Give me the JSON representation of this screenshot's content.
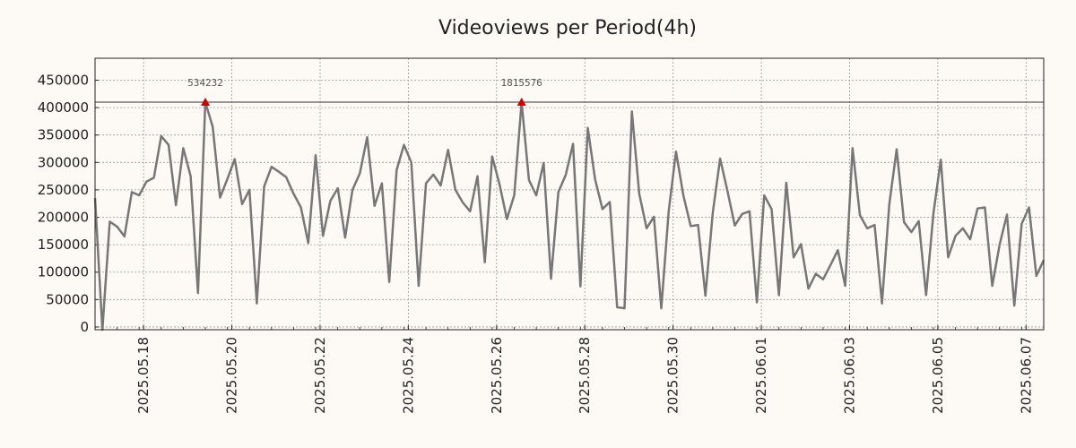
{
  "chart_data": {
    "type": "line",
    "title": "Videoviews per Period(4h)",
    "xlabel": "",
    "ylabel": "",
    "ylim": [
      -5000,
      490000
    ],
    "xlim": [
      0,
      129
    ],
    "grid": true,
    "y_ticks": [
      0,
      50000,
      100000,
      150000,
      200000,
      250000,
      300000,
      350000,
      400000,
      450000
    ],
    "y_tick_labels": [
      "0",
      "50000",
      "100000",
      "150000",
      "200000",
      "250000",
      "300000",
      "350000",
      "400000",
      "450000"
    ],
    "x_ticks": [
      {
        "pos": 6.6,
        "label": "2025.05.18"
      },
      {
        "pos": 18.6,
        "label": "2025.05.20"
      },
      {
        "pos": 30.6,
        "label": "2025.05.22"
      },
      {
        "pos": 42.6,
        "label": "2025.05.24"
      },
      {
        "pos": 54.6,
        "label": "2025.05.26"
      },
      {
        "pos": 66.6,
        "label": "2025.05.28"
      },
      {
        "pos": 78.6,
        "label": "2025.05.30"
      },
      {
        "pos": 90.6,
        "label": "2025.06.01"
      },
      {
        "pos": 102.6,
        "label": "2025.06.03"
      },
      {
        "pos": 114.6,
        "label": "2025.06.05"
      },
      {
        "pos": 126.6,
        "label": "2025.06.07"
      }
    ],
    "threshold": 410000,
    "series": [
      {
        "name": "videoviews",
        "color": "#777777",
        "values": [
          235000,
          -5000,
          192000,
          183000,
          165000,
          246000,
          240000,
          265000,
          272000,
          348000,
          332000,
          222000,
          326000,
          275000,
          62000,
          410000,
          365000,
          236000,
          270000,
          306000,
          224000,
          250000,
          43000,
          256000,
          292000,
          283000,
          273000,
          243000,
          218000,
          153000,
          313000,
          166000,
          230000,
          253000,
          163000,
          250000,
          280000,
          346000,
          221000,
          262000,
          82000,
          286000,
          332000,
          300000,
          75000,
          262000,
          278000,
          258000,
          323000,
          250000,
          227000,
          211000,
          275000,
          118000,
          311000,
          260000,
          197000,
          240000,
          410000,
          268000,
          240000,
          299000,
          88000,
          246000,
          277000,
          334000,
          74000,
          363000,
          269000,
          215000,
          228000,
          36000,
          34000,
          393000,
          243000,
          180000,
          201000,
          34000,
          210000,
          320000,
          240000,
          184000,
          186000,
          57000,
          208000,
          307000,
          248000,
          185000,
          206000,
          211000,
          45000,
          240000,
          215000,
          58000,
          263000,
          127000,
          151000,
          70000,
          97000,
          87000,
          113000,
          140000,
          75000,
          326000,
          204000,
          180000,
          186000,
          43000,
          224000,
          324000,
          191000,
          173000,
          193000,
          58000,
          207000,
          305000,
          127000,
          166000,
          180000,
          160000,
          216000,
          218000,
          75000,
          150000,
          205000,
          39000,
          188000,
          218000,
          93000,
          122000
        ]
      }
    ],
    "annotations": [
      {
        "index": 15,
        "value": 410000,
        "label": "534232",
        "marker": "triangle",
        "color": "#cc0000"
      },
      {
        "index": 58,
        "value": 410000,
        "label": "1815576",
        "marker": "triangle",
        "color": "#cc0000"
      }
    ]
  }
}
